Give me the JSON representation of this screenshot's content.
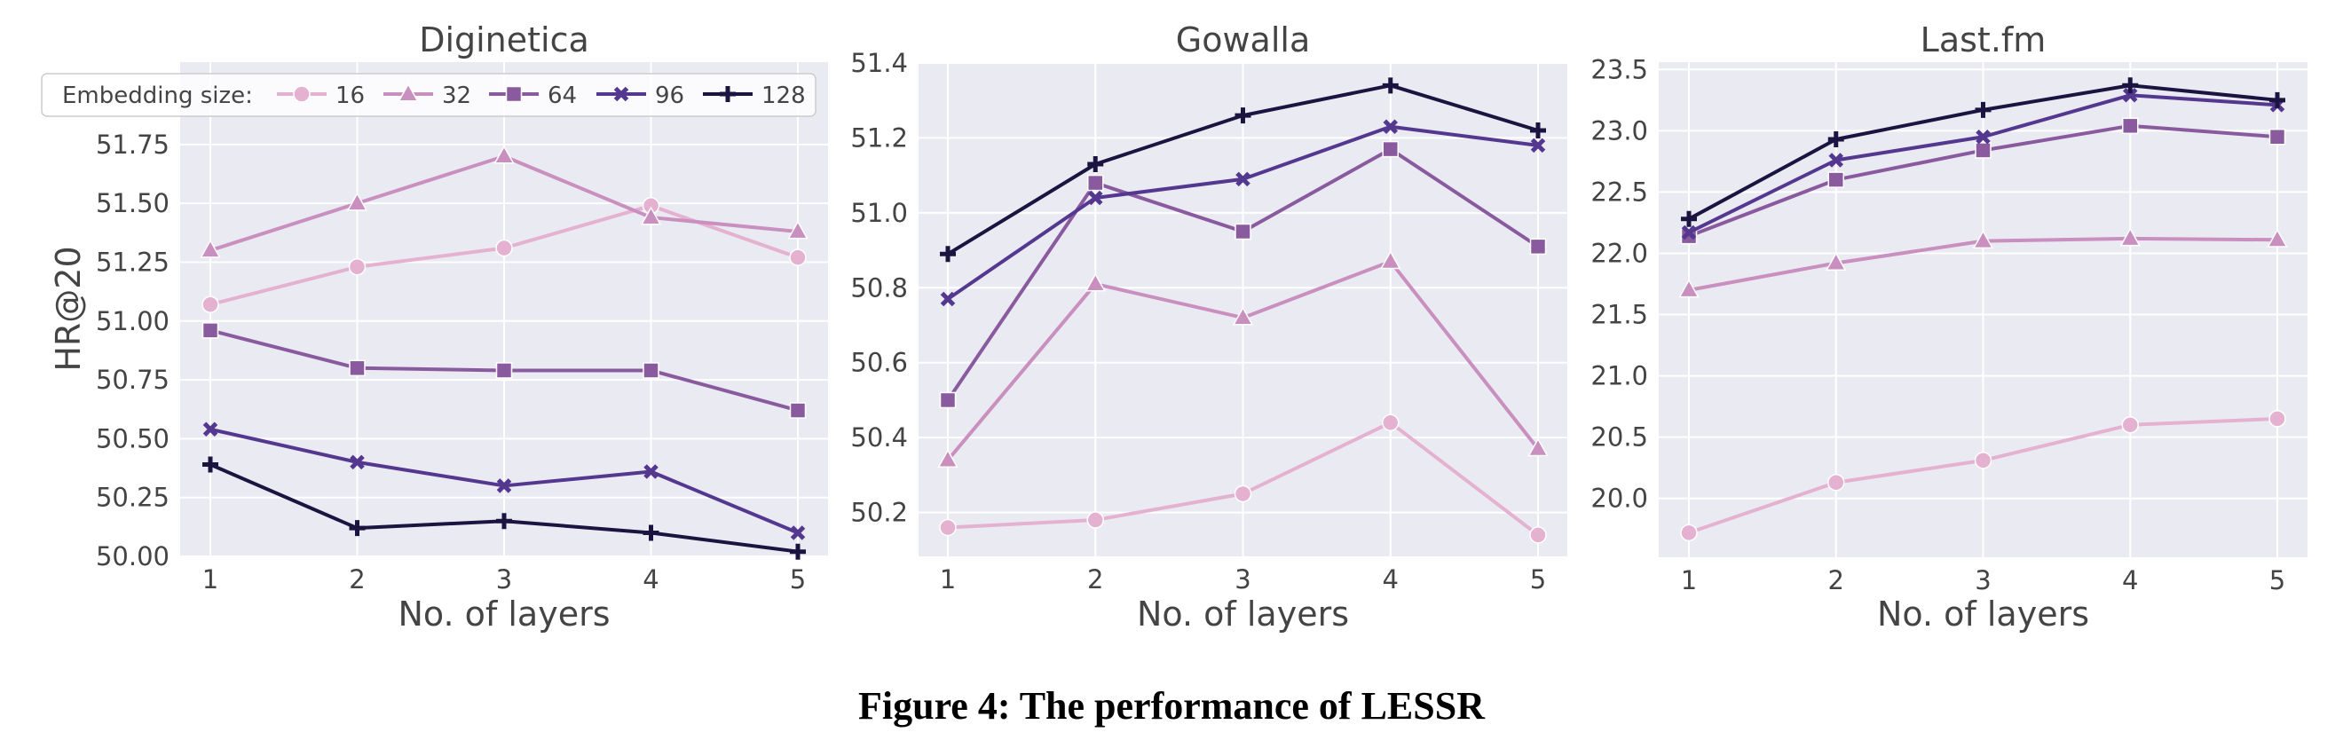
{
  "caption": "Figure 4: The performance of LESSR",
  "legend": {
    "title": "Embedding size:",
    "entries": [
      {
        "label": "16",
        "color": "#e4b2d0",
        "marker": "circle"
      },
      {
        "label": "32",
        "color": "#c98fbe",
        "marker": "triangle"
      },
      {
        "label": "64",
        "color": "#8a5a9f",
        "marker": "square"
      },
      {
        "label": "96",
        "color": "#54388f",
        "marker": "x"
      },
      {
        "label": "128",
        "color": "#1c1440",
        "marker": "plus"
      }
    ]
  },
  "chart_data": [
    {
      "type": "line",
      "title": "Diginetica",
      "xlabel": "No. of layers",
      "ylabel": "HR@20",
      "x": [
        1,
        2,
        3,
        4,
        5
      ],
      "xticks": [
        "1",
        "2",
        "3",
        "4",
        "5"
      ],
      "ylim": [
        50.0,
        52.1
      ],
      "yticks": [
        "50.00",
        "50.25",
        "50.50",
        "50.75",
        "51.00",
        "51.25",
        "51.50",
        "51.75"
      ],
      "grid": true,
      "legend": "top-left",
      "series": [
        {
          "name": "16",
          "values": [
            51.07,
            51.23,
            51.31,
            51.49,
            51.27
          ]
        },
        {
          "name": "32",
          "values": [
            51.3,
            51.5,
            51.7,
            51.44,
            51.38
          ]
        },
        {
          "name": "64",
          "values": [
            50.96,
            50.8,
            50.79,
            50.79,
            50.62
          ]
        },
        {
          "name": "96",
          "values": [
            50.54,
            50.4,
            50.3,
            50.36,
            50.1
          ]
        },
        {
          "name": "128",
          "values": [
            50.39,
            50.12,
            50.15,
            50.1,
            50.02
          ]
        }
      ]
    },
    {
      "type": "line",
      "title": "Gowalla",
      "xlabel": "No. of layers",
      "ylabel": "",
      "x": [
        1,
        2,
        3,
        4,
        5
      ],
      "xticks": [
        "1",
        "2",
        "3",
        "4",
        "5"
      ],
      "ylim": [
        50.083,
        51.4
      ],
      "yticks": [
        "50.2",
        "50.4",
        "50.6",
        "50.8",
        "51.0",
        "51.2",
        "51.4"
      ],
      "grid": true,
      "series": [
        {
          "name": "16",
          "values": [
            50.16,
            50.18,
            50.25,
            50.44,
            50.14
          ]
        },
        {
          "name": "32",
          "values": [
            50.34,
            50.81,
            50.72,
            50.87,
            50.37
          ]
        },
        {
          "name": "64",
          "values": [
            50.5,
            51.08,
            50.95,
            51.17,
            50.91
          ]
        },
        {
          "name": "96",
          "values": [
            50.77,
            51.04,
            51.09,
            51.23,
            51.18
          ]
        },
        {
          "name": "128",
          "values": [
            50.89,
            51.13,
            51.26,
            51.34,
            51.22
          ]
        }
      ]
    },
    {
      "type": "line",
      "title": "Last.fm",
      "xlabel": "No. of layers",
      "ylabel": "",
      "x": [
        1,
        2,
        3,
        4,
        5
      ],
      "xticks": [
        "1",
        "2",
        "3",
        "4",
        "5"
      ],
      "ylim": [
        19.52,
        23.56
      ],
      "yticks": [
        "20.0",
        "20.5",
        "21.0",
        "21.5",
        "22.0",
        "22.5",
        "23.0",
        "23.5"
      ],
      "grid": true,
      "series": [
        {
          "name": "16",
          "values": [
            19.72,
            20.13,
            20.31,
            20.6,
            20.65
          ]
        },
        {
          "name": "32",
          "values": [
            21.7,
            21.92,
            22.1,
            22.12,
            22.11
          ]
        },
        {
          "name": "64",
          "values": [
            22.14,
            22.6,
            22.84,
            23.04,
            22.95
          ]
        },
        {
          "name": "96",
          "values": [
            22.17,
            22.76,
            22.95,
            23.29,
            23.21
          ]
        },
        {
          "name": "128",
          "values": [
            22.28,
            22.93,
            23.17,
            23.37,
            23.25
          ]
        }
      ]
    }
  ]
}
